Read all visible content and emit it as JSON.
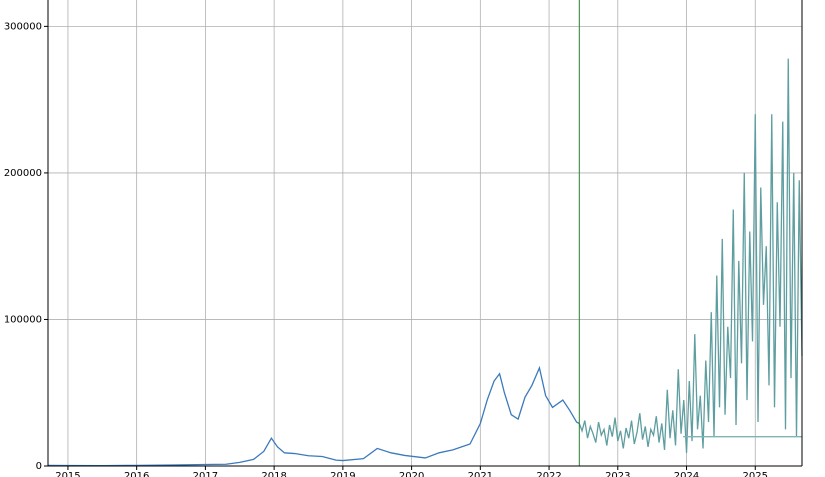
{
  "chart_data": {
    "type": "line",
    "xlim": [
      2014.71,
      2025.68
    ],
    "xticks": [
      2015,
      2016,
      2017,
      2018,
      2019,
      2020,
      2021,
      2022,
      2023,
      2024,
      2025
    ],
    "ylim": [
      0,
      318000
    ],
    "yticks": [
      0,
      100000,
      200000,
      300000
    ],
    "grid": true,
    "vline": 2022.44,
    "vline_color": "#2e7d32",
    "series": [
      {
        "color": "#3a7abd",
        "x": [
          2014.71,
          2015,
          2015.5,
          2016,
          2016.5,
          2017,
          2017.3,
          2017.5,
          2017.7,
          2017.85,
          2017.96,
          2018.05,
          2018.15,
          2018.3,
          2018.5,
          2018.7,
          2018.9,
          2019,
          2019.3,
          2019.5,
          2019.7,
          2019.9,
          2020.2,
          2020.4,
          2020.6,
          2020.85,
          2021,
          2021.1,
          2021.2,
          2021.28,
          2021.35,
          2021.45,
          2021.55,
          2021.65,
          2021.75,
          2021.86,
          2021.95,
          2022.05,
          2022.2,
          2022.3,
          2022.4,
          2022.44
        ],
        "values": [
          400,
          300,
          250,
          430,
          650,
          1000,
          1200,
          2500,
          4500,
          10000,
          19000,
          13000,
          9000,
          8500,
          7000,
          6500,
          4000,
          3700,
          5000,
          12000,
          9000,
          7200,
          5500,
          9000,
          11000,
          15000,
          29000,
          45000,
          58000,
          63000,
          50000,
          35000,
          32000,
          47000,
          55000,
          67000,
          48000,
          40000,
          45000,
          38000,
          30000,
          29000
        ]
      },
      {
        "color": "#5f9ea0",
        "x": [
          2022.44,
          2022.48,
          2022.52,
          2022.56,
          2022.6,
          2022.64,
          2022.68,
          2022.72,
          2022.76,
          2022.8,
          2022.84,
          2022.88,
          2022.92,
          2022.96,
          2023,
          2023.04,
          2023.08,
          2023.12,
          2023.16,
          2023.2,
          2023.24,
          2023.28,
          2023.32,
          2023.36,
          2023.4,
          2023.44,
          2023.48,
          2023.52,
          2023.56,
          2023.6,
          2023.64,
          2023.68,
          2023.72,
          2023.76,
          2023.8,
          2023.84,
          2023.88,
          2023.92,
          2023.96,
          2024,
          2024.04,
          2024.08,
          2024.12,
          2024.16,
          2024.2,
          2024.24,
          2024.28,
          2024.32,
          2024.36,
          2024.4,
          2024.44,
          2024.48,
          2024.52,
          2024.56,
          2024.6,
          2024.64,
          2024.68,
          2024.72,
          2024.76,
          2024.8,
          2024.84,
          2024.88,
          2024.92,
          2024.96,
          2025,
          2025.04,
          2025.08,
          2025.12,
          2025.16,
          2025.2,
          2025.24,
          2025.28,
          2025.32,
          2025.36,
          2025.4,
          2025.44,
          2025.48,
          2025.52,
          2025.56,
          2025.6,
          2025.64,
          2025.68
        ],
        "values": [
          29000,
          24000,
          31000,
          19000,
          27000,
          22000,
          16000,
          30000,
          21000,
          25000,
          14000,
          28000,
          20000,
          33000,
          17000,
          24000,
          12000,
          26000,
          19000,
          31000,
          15000,
          23000,
          36000,
          18000,
          27000,
          13000,
          25000,
          21000,
          34000,
          16000,
          29000,
          11000,
          52000,
          19000,
          38000,
          14000,
          66000,
          22000,
          45000,
          9000,
          58000,
          17000,
          90000,
          25000,
          48000,
          12000,
          72000,
          30000,
          105000,
          20000,
          130000,
          40000,
          155000,
          35000,
          95000,
          60000,
          175000,
          28000,
          140000,
          70000,
          200000,
          45000,
          160000,
          85000,
          240000,
          30000,
          190000,
          110000,
          150000,
          55000,
          240000,
          40000,
          180000,
          95000,
          235000,
          25000,
          278000,
          60000,
          200000,
          20000,
          195000,
          75000
        ]
      },
      {
        "color": "#7fb3b5",
        "x": [
          2023.95,
          2025.68
        ],
        "values": [
          20000,
          20000
        ]
      }
    ]
  }
}
